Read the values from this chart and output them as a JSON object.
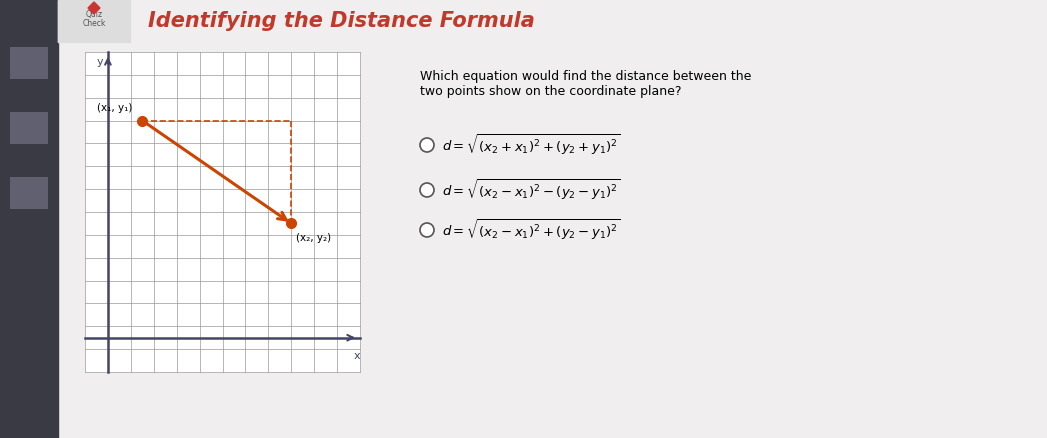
{
  "title": "Identifying the Distance Formula",
  "title_color": "#c0392b",
  "outer_bg": "#4a4a5a",
  "content_bg": "#f0eeee",
  "header_bg": "#f0eeee",
  "sidebar_bg": "#3a3a45",
  "question_text": "Which equation would find the distance between the\ntwo points show on the coordinate plane?",
  "grid_color": "#999999",
  "line_color": "#cc4400",
  "dashed_color": "#cc4400",
  "point_color": "#cc4400",
  "axis_color": "#444466",
  "label1": "(x₁, y₁)",
  "label2": "(x₂, y₂)",
  "option_texts": [
    "d=√(x₂+x₁)²+(y₂+y₁)²",
    "d=√(x₂-x₁)²-(y₂-y₁)²",
    "d=√(x₂-x₁)²+(y₂-y₁)²"
  ],
  "fig_width": 10.47,
  "fig_height": 4.38,
  "dpi": 100
}
